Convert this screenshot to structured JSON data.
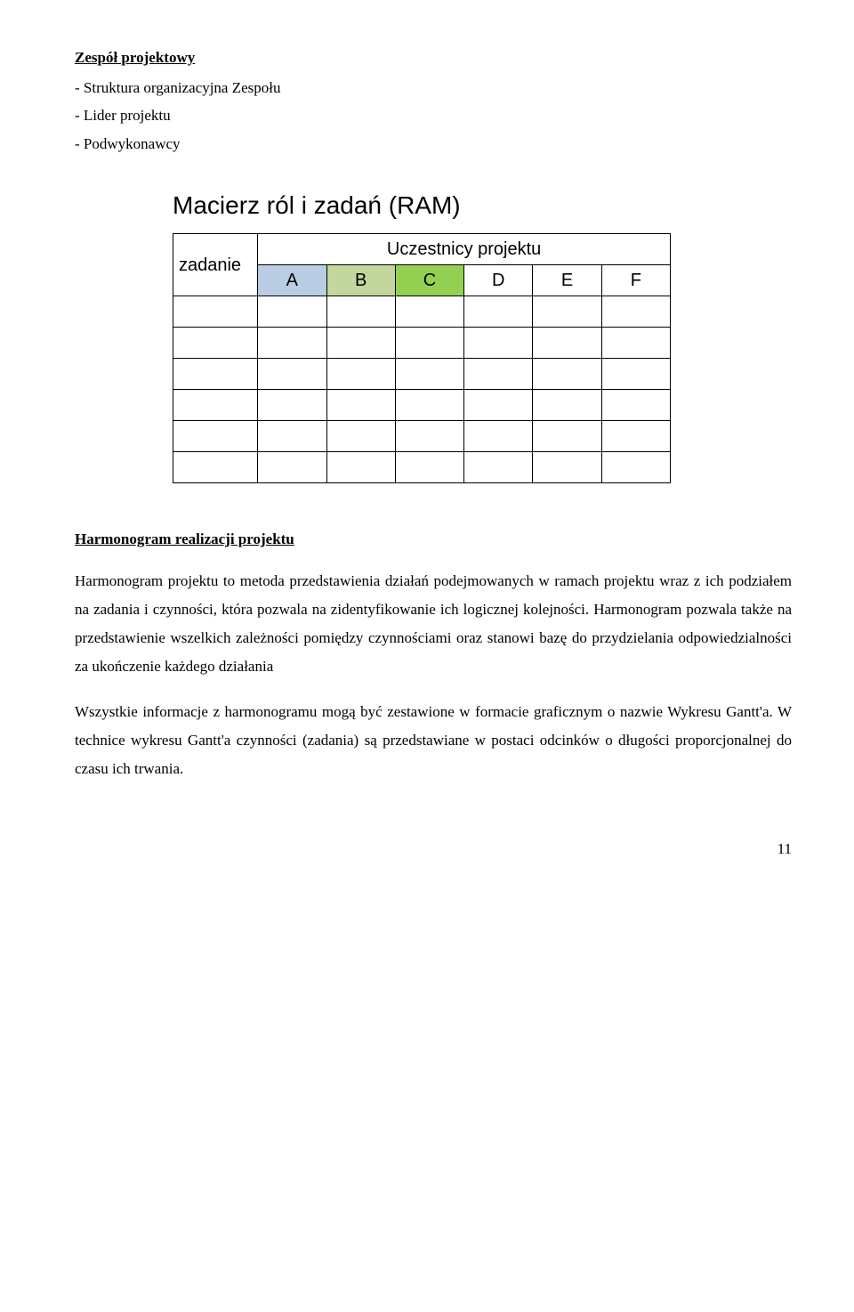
{
  "section1": {
    "heading": "Zespół projektowy",
    "items": [
      "- Struktura organizacyjna Zespołu",
      "- Lider projektu",
      "- Podwykonawcy"
    ]
  },
  "ram": {
    "title": "Macierz ról i zadań (RAM)",
    "header_left": "zadanie",
    "header_right": "Uczestnicy projektu",
    "columns": [
      "A",
      "B",
      "C",
      "D",
      "E",
      "F"
    ],
    "empty_rows": 6,
    "colors": {
      "A": "#b9cde5",
      "B": "#c3d69b",
      "C": "#93d051",
      "D": "#ffffff",
      "E": "#ffffff",
      "F": "#ffffff"
    }
  },
  "section2": {
    "heading": "Harmonogram realizacji projektu",
    "para1": "Harmonogram projektu to metoda przedstawienia działań podejmowanych w ramach projektu wraz z ich podziałem na zadania i czynności, która pozwala na zidentyfikowanie ich logicznej kolejności. Harmonogram pozwala także na przedstawienie wszelkich zależności pomiędzy czynnościami oraz stanowi bazę do przydzielania odpowiedzialności za ukończenie każdego działania",
    "para2": "Wszystkie informacje z harmonogramu mogą być zestawione w formacie graficznym o nazwie Wykresu Gantt'a. W technice wykresu Gantt'a czynności (zadania) są przedstawiane w postaci odcinków o długości proporcjonalnej do czasu ich trwania."
  },
  "page_number": "11"
}
